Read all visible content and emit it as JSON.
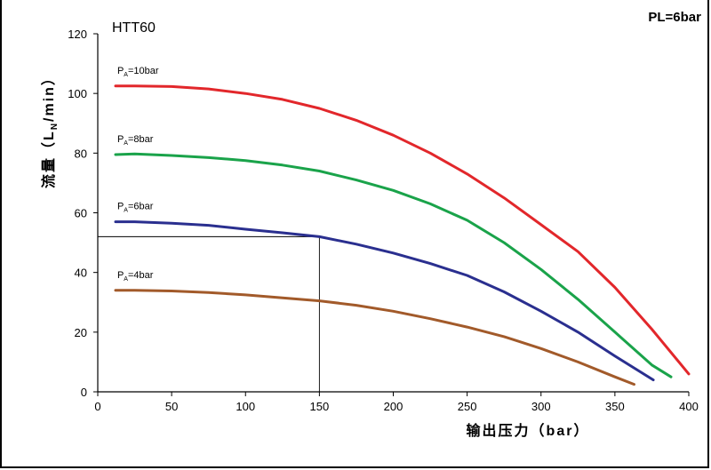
{
  "chart_data": {
    "type": "line",
    "title": "HTT60",
    "corner_label": "PL=6bar",
    "xlabel": "输出压力（bar）",
    "ylabel_parts": {
      "main": "流量（L",
      "sub": "N",
      "tail": "/min）"
    },
    "xlim": [
      0,
      400
    ],
    "ylim": [
      0,
      120
    ],
    "x_ticks": [
      0,
      50,
      100,
      150,
      200,
      250,
      300,
      350,
      400
    ],
    "y_ticks": [
      0,
      20,
      40,
      60,
      80,
      100,
      120
    ],
    "grid": false,
    "series": [
      {
        "label_main": "P",
        "label_sub": "A",
        "label_tail": "=10bar",
        "color": "#e2272b",
        "x": [
          12,
          25,
          50,
          75,
          100,
          125,
          150,
          175,
          200,
          225,
          250,
          275,
          300,
          325,
          350,
          375,
          400
        ],
        "y": [
          102.5,
          102.5,
          102.3,
          101.5,
          100,
          98,
          95,
          91,
          86,
          80,
          73,
          65,
          56,
          47,
          35,
          21,
          6
        ]
      },
      {
        "label_main": "P",
        "label_sub": "A",
        "label_tail": "=8bar",
        "color": "#1aa34a",
        "x": [
          12,
          25,
          50,
          75,
          100,
          125,
          150,
          175,
          200,
          225,
          250,
          275,
          300,
          325,
          350,
          375,
          388
        ],
        "y": [
          79.5,
          79.7,
          79.2,
          78.5,
          77.5,
          76,
          74,
          71,
          67.5,
          63,
          57.5,
          50,
          41,
          31,
          20,
          9,
          5
        ]
      },
      {
        "label_main": "P",
        "label_sub": "A",
        "label_tail": "=6bar",
        "color": "#2a2f8f",
        "x": [
          12,
          25,
          50,
          75,
          100,
          125,
          150,
          175,
          200,
          225,
          250,
          275,
          300,
          325,
          350,
          376
        ],
        "y": [
          57,
          57,
          56.5,
          55.8,
          54.5,
          53.3,
          52,
          49.5,
          46.5,
          43,
          39,
          33.5,
          27,
          20,
          12,
          4
        ]
      },
      {
        "label_main": "P",
        "label_sub": "A",
        "label_tail": "=4bar",
        "color": "#a25a2a",
        "x": [
          12,
          25,
          50,
          75,
          100,
          125,
          150,
          175,
          200,
          225,
          250,
          275,
          300,
          325,
          350,
          363
        ],
        "y": [
          34,
          34,
          33.8,
          33.3,
          32.5,
          31.5,
          30.5,
          29,
          27,
          24.5,
          21.7,
          18.5,
          14.5,
          10,
          5,
          2.5
        ]
      }
    ],
    "reference_point": {
      "x": 150,
      "y": 52
    }
  }
}
